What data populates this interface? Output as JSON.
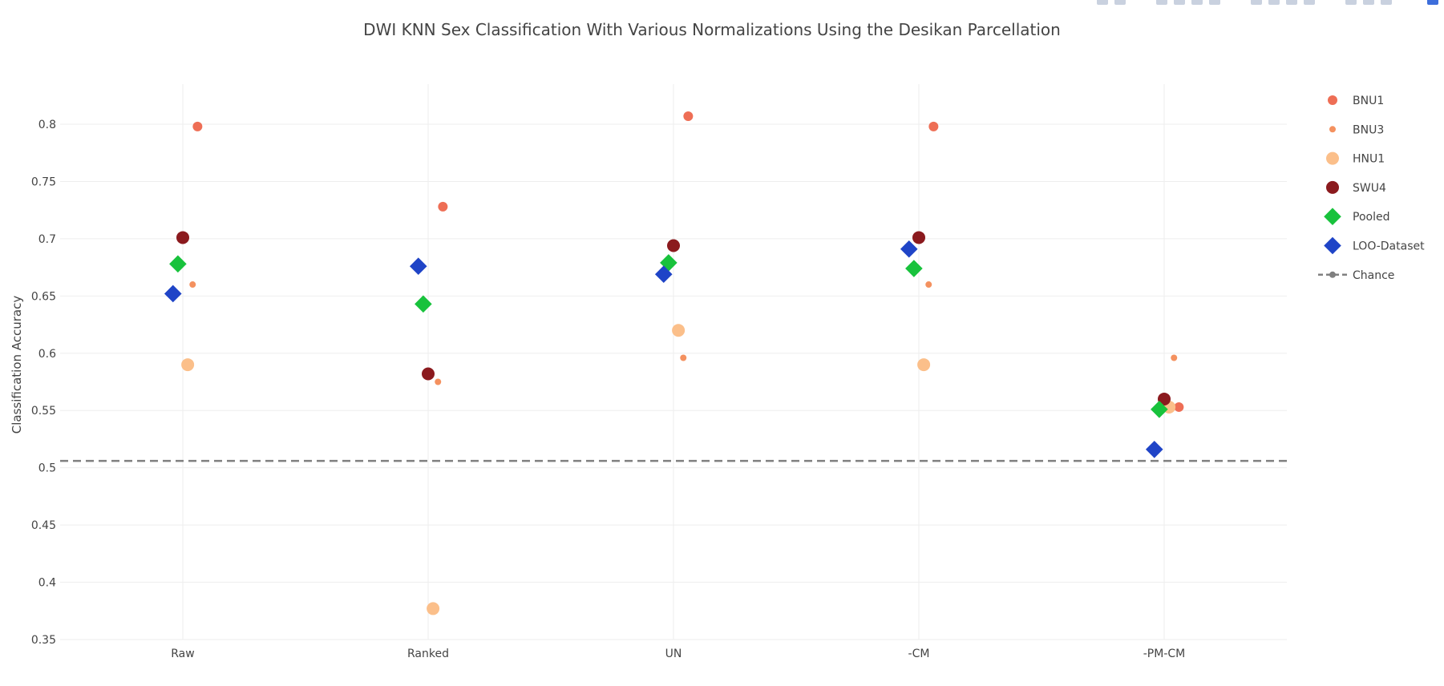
{
  "chart_data": {
    "type": "scatter",
    "title": "DWI KNN Sex Classification With Various Normalizations Using the Desikan Parcellation",
    "xlabel": "",
    "ylabel": "Classification Accuracy",
    "categories": [
      "Raw",
      "Ranked",
      "UN",
      "-CM",
      "-PM-CM"
    ],
    "ylim": [
      0.35,
      0.835
    ],
    "yticks": [
      "0.35",
      "0.4",
      "0.45",
      "0.5",
      "0.55",
      "0.6",
      "0.65",
      "0.7",
      "0.75",
      "0.8"
    ],
    "grid": true,
    "legend_position": "right",
    "series": [
      {
        "name": "BNU1",
        "color": "#ee6e55",
        "marker": "circle",
        "size": "medium",
        "offset": 0.06,
        "values": [
          0.798,
          0.728,
          0.807,
          0.798,
          0.553
        ]
      },
      {
        "name": "BNU3",
        "color": "#f4915f",
        "marker": "circle",
        "size": "small",
        "offset": 0.04,
        "values": [
          0.66,
          0.575,
          0.596,
          0.66,
          0.596
        ]
      },
      {
        "name": "HNU1",
        "color": "#fbbf8a",
        "marker": "circle",
        "size": "large",
        "offset": 0.02,
        "values": [
          0.59,
          0.377,
          0.62,
          0.59,
          0.553
        ]
      },
      {
        "name": "SWU4",
        "color": "#8b1a1e",
        "marker": "circle",
        "size": "large",
        "offset": 0.0,
        "values": [
          0.701,
          0.582,
          0.694,
          0.701,
          0.56
        ]
      },
      {
        "name": "Pooled",
        "color": "#18c23c",
        "marker": "diamond",
        "size": "large",
        "offset": -0.02,
        "values": [
          0.678,
          0.643,
          0.679,
          0.674,
          0.551
        ]
      },
      {
        "name": "LOO-Dataset",
        "color": "#1f44c7",
        "marker": "diamond",
        "size": "large",
        "offset": -0.04,
        "values": [
          0.652,
          0.676,
          0.669,
          0.691,
          0.516
        ]
      }
    ],
    "reference_line": {
      "name": "Chance",
      "value": 0.506,
      "color": "#808080",
      "style": "dashed"
    }
  }
}
